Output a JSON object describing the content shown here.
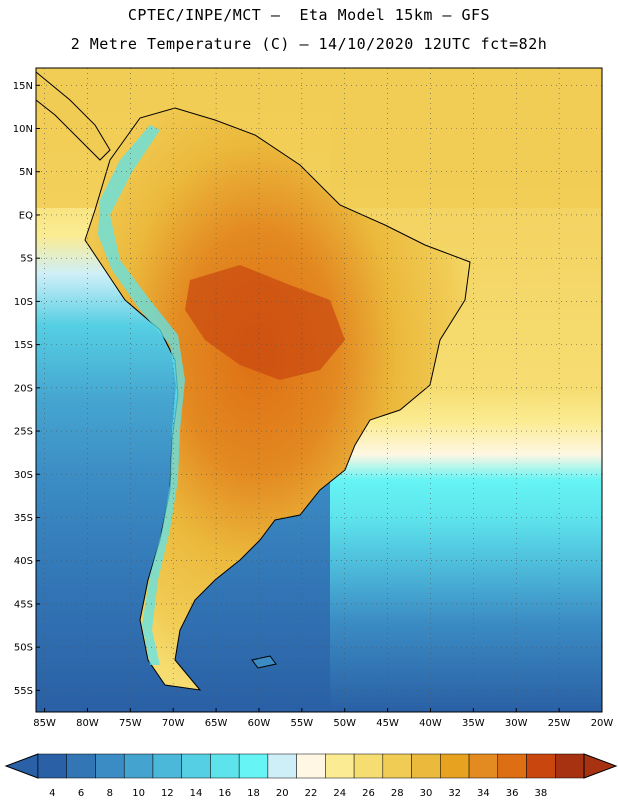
{
  "header": {
    "line1": "CPTEC/INPE/MCT –  Eta Model 15km – GFS",
    "line2": "2 Metre Temperature (C) – 14/10/2020 12UTC fct=82h"
  },
  "map": {
    "lon_range": [
      -86,
      -20
    ],
    "lat_range": [
      -57.5,
      17
    ],
    "lat_labels": [
      "15N",
      "10N",
      "5N",
      "EQ",
      "5S",
      "10S",
      "15S",
      "20S",
      "25S",
      "30S",
      "35S",
      "40S",
      "45S",
      "50S",
      "55S"
    ],
    "lat_values": [
      15,
      10,
      5,
      0,
      -5,
      -10,
      -15,
      -20,
      -25,
      -30,
      -35,
      -40,
      -45,
      -50,
      -55
    ],
    "lon_labels": [
      "85W",
      "80W",
      "75W",
      "70W",
      "65W",
      "60W",
      "55W",
      "50W",
      "45W",
      "40W",
      "35W",
      "30W",
      "25W",
      "20W"
    ],
    "lon_values": [
      -85,
      -80,
      -75,
      -70,
      -65,
      -60,
      -55,
      -50,
      -45,
      -40,
      -35,
      -30,
      -25,
      -20
    ]
  },
  "colorbar": {
    "labels": [
      "4",
      "6",
      "8",
      "10",
      "12",
      "14",
      "16",
      "18",
      "20",
      "22",
      "24",
      "26",
      "28",
      "30",
      "32",
      "34",
      "36",
      "38"
    ],
    "colors": [
      "#2a60a5",
      "#3276b6",
      "#3b8cc4",
      "#45a4cf",
      "#4cb8d9",
      "#55cfe3",
      "#5de3ec",
      "#66f4f4",
      "#cfeff8",
      "#fff7e3",
      "#fbec93",
      "#f6dd72",
      "#f1cc55",
      "#ebb93c",
      "#e7a21f",
      "#e38a21",
      "#de6e14",
      "#c9470f",
      "#a73212"
    ]
  }
}
